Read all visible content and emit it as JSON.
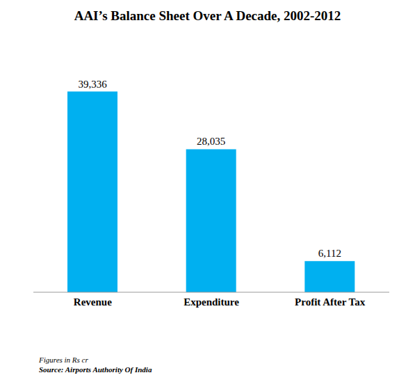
{
  "chart_data": {
    "type": "bar",
    "title": "AAI’s Balance Sheet Over A Decade, 2002-2012",
    "categories": [
      "Revenue",
      "Expenditure",
      "Profit After Tax"
    ],
    "values": [
      39336,
      28035,
      6112
    ],
    "value_labels": [
      "39,336",
      "28,035",
      "6,112"
    ],
    "color": "#00b0f0",
    "ylim": [
      0,
      45000
    ],
    "data_labels": true,
    "tick_labels": "x",
    "annotations": [
      "Figures in Rs cr",
      "Source: Airports Authority Of India"
    ]
  }
}
